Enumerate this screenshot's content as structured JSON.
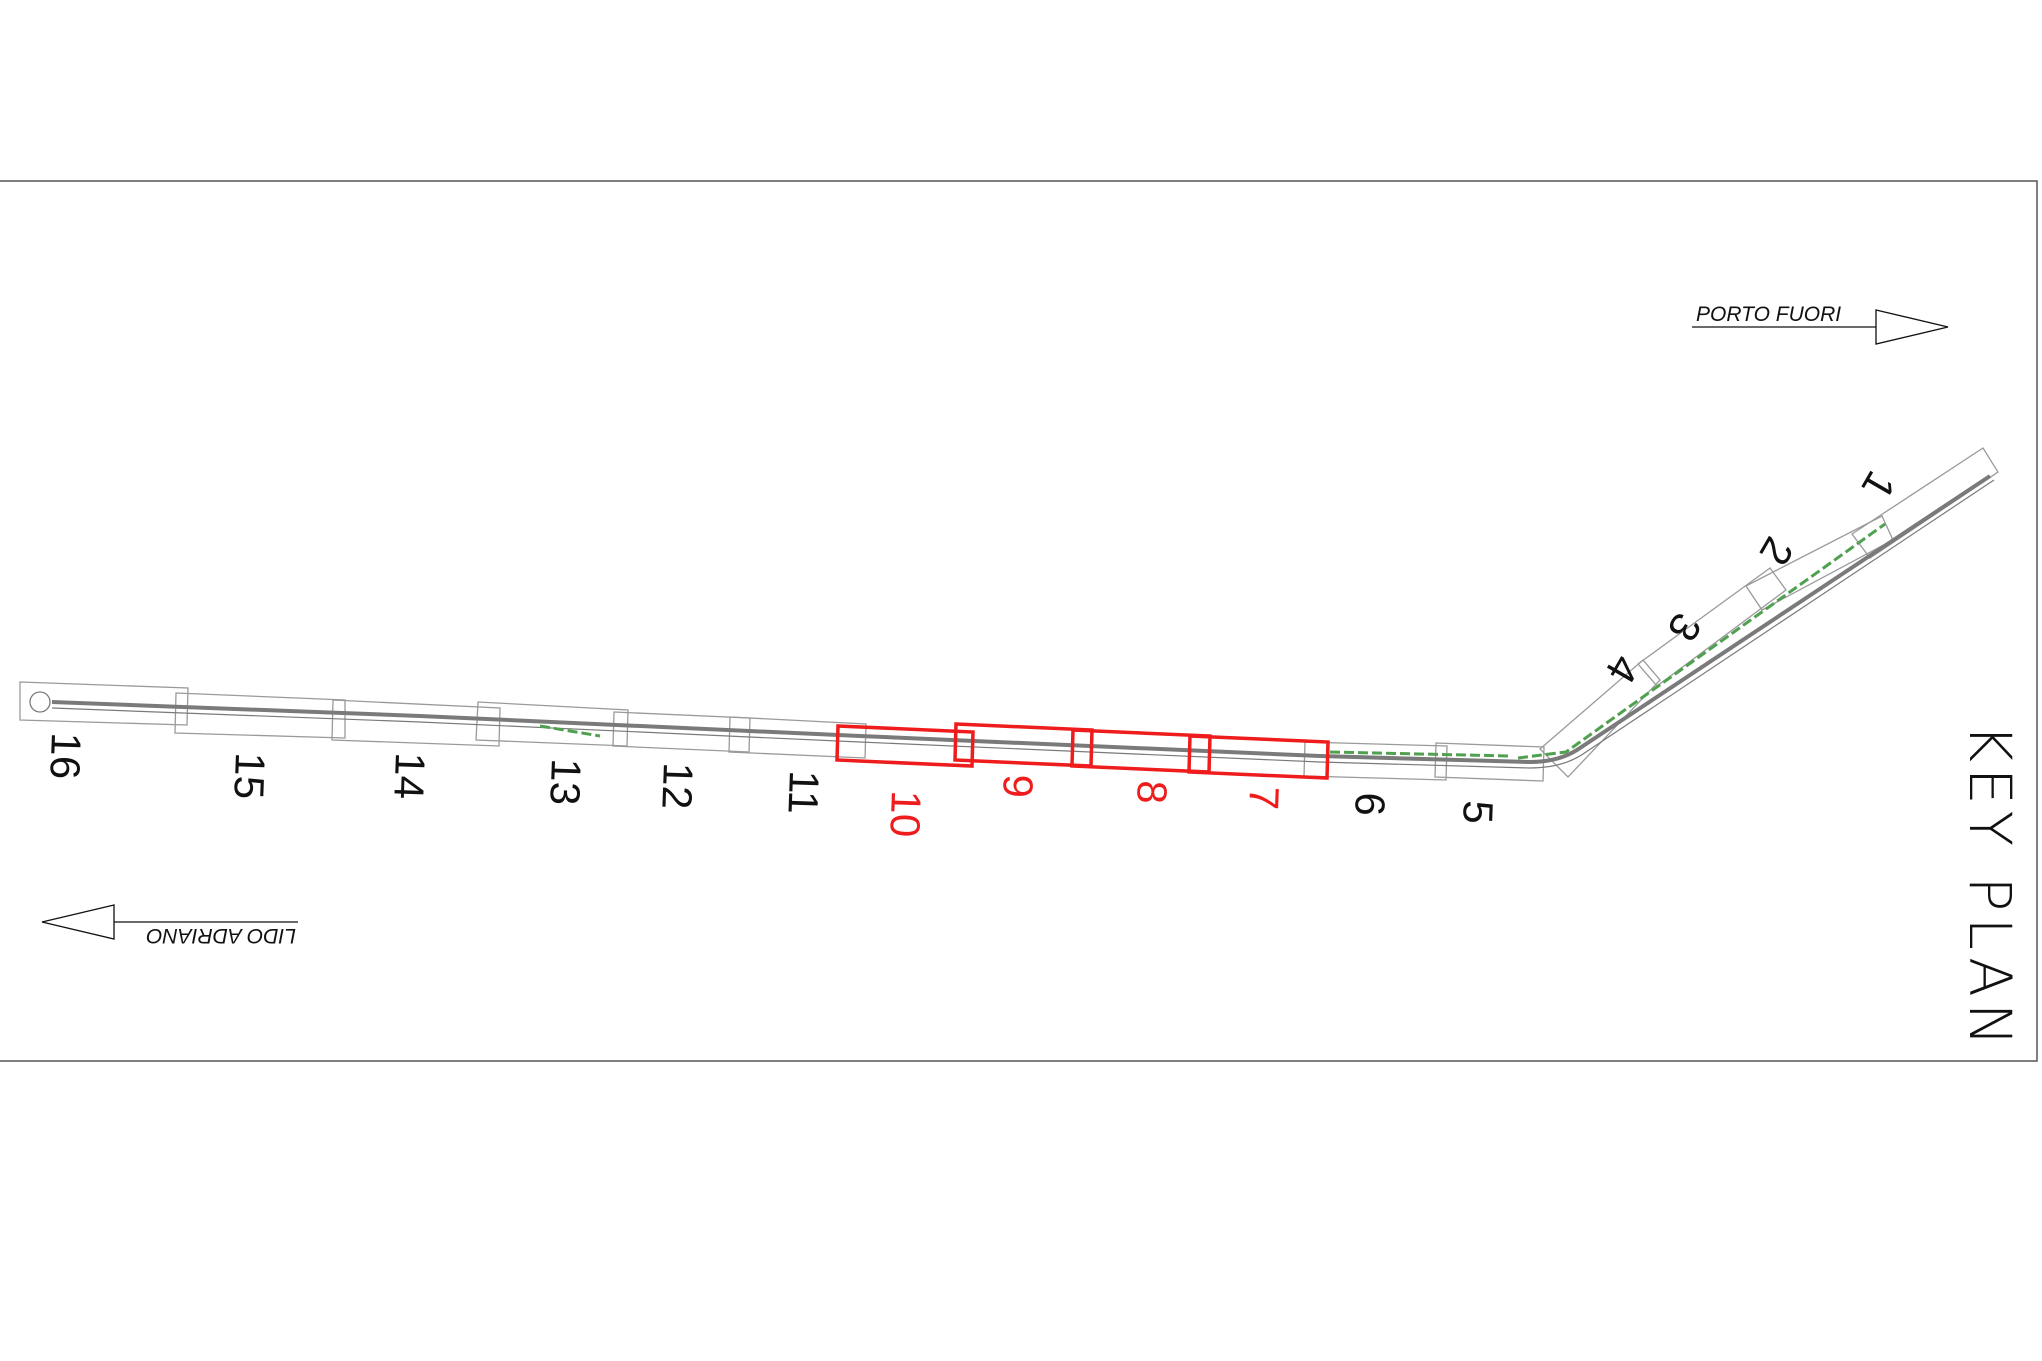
{
  "title": "KEY PLAN",
  "directions": {
    "north": "PORTO FUORI",
    "south": "LIDO ADRIANO"
  },
  "sheets": [
    {
      "number": "1",
      "highlighted": false
    },
    {
      "number": "2",
      "highlighted": false
    },
    {
      "number": "3",
      "highlighted": false
    },
    {
      "number": "4",
      "highlighted": false
    },
    {
      "number": "5",
      "highlighted": false
    },
    {
      "number": "6",
      "highlighted": false
    },
    {
      "number": "7",
      "highlighted": true
    },
    {
      "number": "8",
      "highlighted": true
    },
    {
      "number": "9",
      "highlighted": true
    },
    {
      "number": "10",
      "highlighted": true
    },
    {
      "number": "11",
      "highlighted": false
    },
    {
      "number": "12",
      "highlighted": false
    },
    {
      "number": "13",
      "highlighted": false
    },
    {
      "number": "14",
      "highlighted": false
    },
    {
      "number": "15",
      "highlighted": false
    },
    {
      "number": "16",
      "highlighted": false
    }
  ],
  "colors": {
    "highlight": "#ee1c1c",
    "label": "#111111",
    "frame": "#555555",
    "route": "#7a7a7a",
    "greenery": "#4fa04f",
    "sheet_outline": "#9a9a9a"
  }
}
